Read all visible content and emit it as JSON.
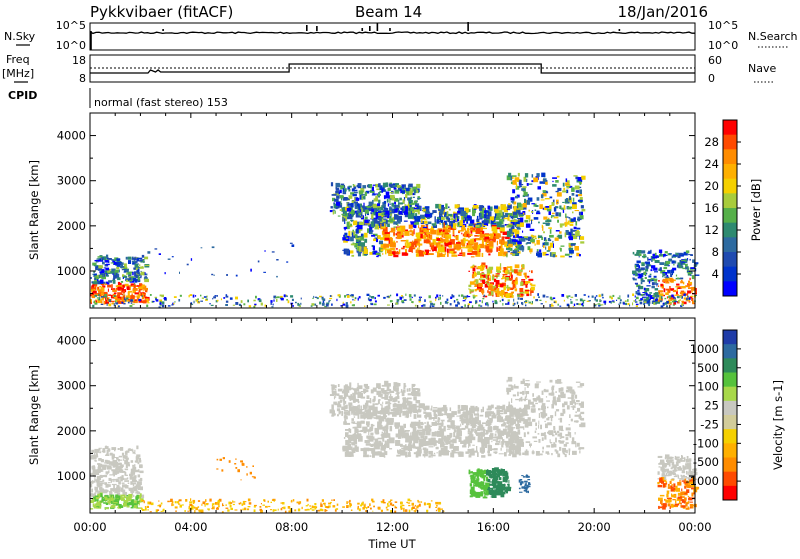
{
  "header": {
    "title": "Pykkvibaer (fitACF)",
    "beam": "Beam 14",
    "date": "18/Jan/2016"
  },
  "strip_left_labels": {
    "nsky": "N.Sky",
    "freq_line1": "Freq",
    "freq_line2": "[MHz]",
    "cpid": "CPID"
  },
  "strip_right_labels": {
    "nsearch": "N.Search",
    "nave": "Nave"
  },
  "noise_strip": {
    "left_ticks": [
      "10^5",
      "10^0"
    ],
    "right_ticks": [
      "10^5",
      "10^0"
    ]
  },
  "freq_strip": {
    "left_ticks": [
      "18",
      "8"
    ],
    "right_ticks": [
      "60",
      "0"
    ]
  },
  "cpid_text": "normal (fast stereo) 153",
  "chart_data": [
    {
      "type": "heatmap",
      "panel": "power",
      "ylabel": "Slant Range [km]",
      "yticks": [
        "4000",
        "3000",
        "2000",
        "1000"
      ],
      "ylim": [
        180,
        4500
      ],
      "colorbar": {
        "label": "Power [dB]",
        "ticks": [
          "28",
          "24",
          "20",
          "16",
          "12",
          "8",
          "4"
        ],
        "colors": [
          "#ff0000",
          "#ff4a00",
          "#ff8c00",
          "#ffb000",
          "#f5d000",
          "#a8cc3c",
          "#56b04a",
          "#2e8a70",
          "#2d6aa0",
          "#1f4ab0",
          "#0033cc",
          "#0000ff"
        ]
      }
    },
    {
      "type": "heatmap",
      "panel": "velocity",
      "ylabel": "Slant Range [km]",
      "yticks": [
        "4000",
        "3000",
        "2000",
        "1000"
      ],
      "ylim": [
        180,
        4500
      ],
      "colorbar": {
        "label": "Velocity [m s-1]",
        "ticks": [
          "1000",
          "500",
          "100",
          "25",
          "-25",
          "-100",
          "-500",
          "-1000"
        ],
        "colors": [
          "#1f3ca8",
          "#2d6aa0",
          "#2e8a5a",
          "#56c23c",
          "#a8d84a",
          "#c8c8c0",
          "#d2cc9a",
          "#f5d000",
          "#ffb000",
          "#ff8c00",
          "#ff4a00",
          "#ff0000"
        ]
      }
    }
  ],
  "xaxis": {
    "ticks": [
      "00:00",
      "04:00",
      "08:00",
      "12:00",
      "16:00",
      "20:00",
      "00:00"
    ],
    "label": "Time UT"
  }
}
